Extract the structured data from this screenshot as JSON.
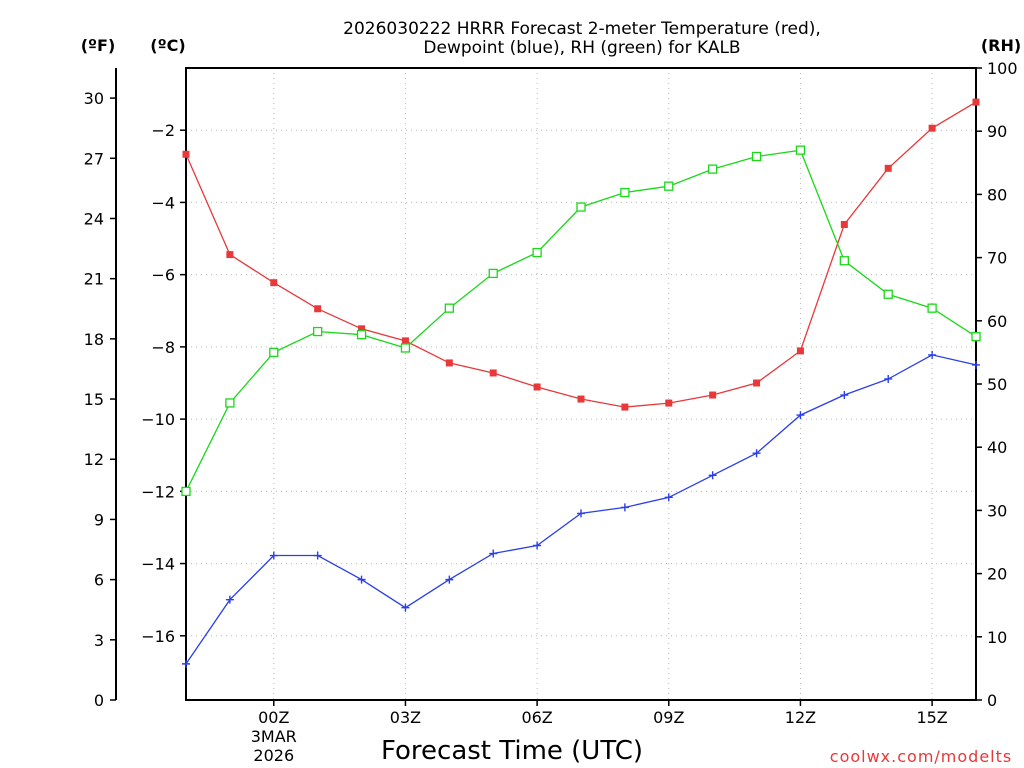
{
  "chart_data": {
    "type": "line",
    "title_line1": "2026030222 HRRR Forecast 2-meter Temperature (red),",
    "title_line2": "Dewpoint (blue), RH (green) for KALB",
    "xlabel": "Forecast Time (UTC)",
    "credit": "coolwx.com/modelts",
    "unit_labels": {
      "fahrenheit": "(ºF)",
      "celsius": "(ºC)",
      "rh": "(RH)"
    },
    "x_hours_utc_offset": [
      -2,
      -1,
      0,
      1,
      2,
      3,
      4,
      5,
      6,
      7,
      8,
      9,
      10,
      11,
      12,
      13,
      14,
      15,
      16
    ],
    "x_ticks": [
      {
        "hour": 0,
        "label": "00Z",
        "sub1": "3MAR",
        "sub2": "2026"
      },
      {
        "hour": 3,
        "label": "03Z"
      },
      {
        "hour": 6,
        "label": "06Z"
      },
      {
        "hour": 9,
        "label": "09Z"
      },
      {
        "hour": 12,
        "label": "12Z"
      },
      {
        "hour": 15,
        "label": "15Z"
      }
    ],
    "x_range": [
      -2,
      16
    ],
    "y_left_fahrenheit": {
      "range": [
        0,
        31.5
      ],
      "ticks": [
        0,
        3,
        6,
        9,
        12,
        15,
        18,
        21,
        24,
        27,
        30
      ]
    },
    "y_left_celsius": {
      "ticks": [
        -16,
        -14,
        -12,
        -10,
        -8,
        -6,
        -4,
        -2
      ]
    },
    "y_right_rh": {
      "range": [
        0,
        100
      ],
      "ticks": [
        0,
        10,
        20,
        30,
        40,
        50,
        60,
        70,
        80,
        90,
        100
      ]
    },
    "series": [
      {
        "name": "Temperature",
        "unit": "F",
        "color": "#e8383a",
        "marker": "filled-square",
        "values": [
          27.2,
          22.2,
          20.8,
          19.5,
          18.5,
          17.9,
          16.8,
          16.3,
          15.6,
          15.0,
          14.6,
          14.8,
          15.2,
          15.8,
          17.4,
          23.7,
          26.5,
          28.5,
          29.8
        ]
      },
      {
        "name": "Dewpoint",
        "unit": "F",
        "color": "#2a3fe8",
        "marker": "plus",
        "values": [
          1.8,
          5.0,
          7.2,
          7.2,
          6.0,
          4.6,
          6.0,
          7.3,
          7.7,
          9.3,
          9.6,
          10.1,
          11.2,
          12.3,
          14.2,
          15.2,
          16.0,
          17.2,
          16.7
        ]
      },
      {
        "name": "RH",
        "unit": "%",
        "color": "#19d819",
        "marker": "open-square",
        "values": [
          33,
          47,
          55,
          58.3,
          57.8,
          55.7,
          62,
          67.5,
          70.8,
          78,
          80.3,
          81.3,
          84,
          86,
          87,
          69.5,
          64.2,
          62,
          57.5
        ]
      }
    ]
  }
}
